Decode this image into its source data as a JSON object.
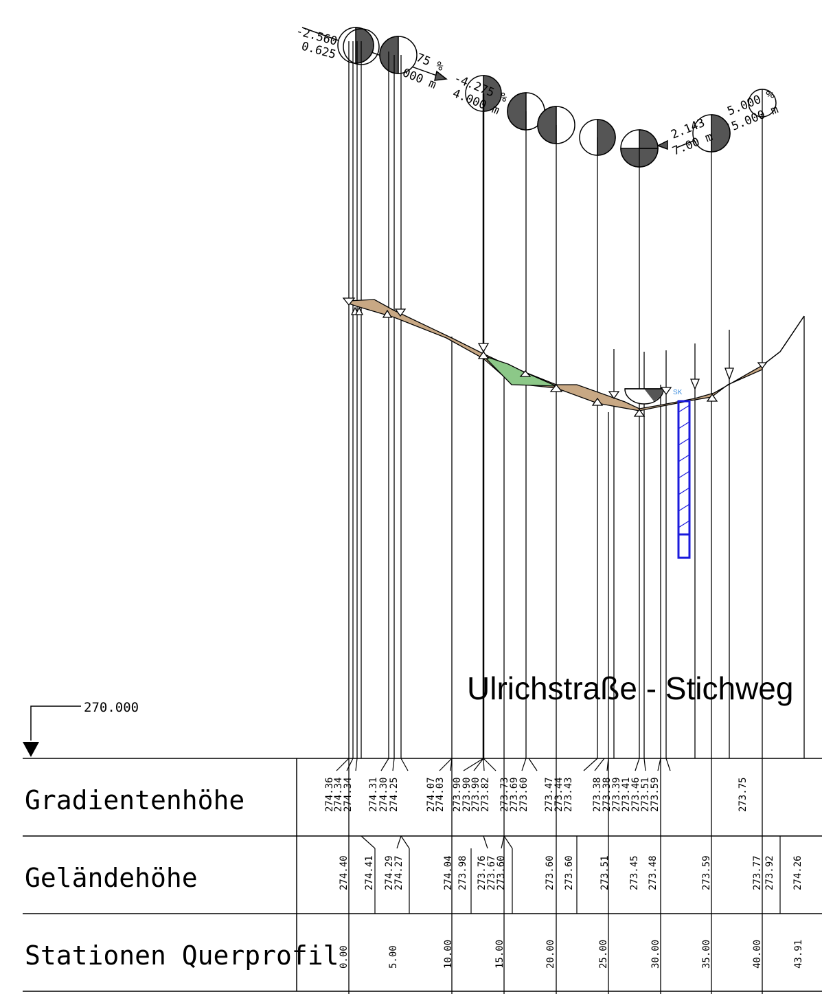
{
  "title": "Ulrichstraße - Stichweg",
  "datum_label": "270.000",
  "rows": [
    {
      "label": "Gradientenhöhe"
    },
    {
      "label": "Geländehöhe"
    },
    {
      "label": "Stationen Querprofil"
    }
  ],
  "gradient_values": [
    "274.36",
    "274.34",
    "274.34",
    "274.31",
    "274.30",
    "274.25",
    "274.07",
    "274.03",
    "273.90",
    "273.90",
    "273.90",
    "273.82",
    "273.73",
    "273.69",
    "273.60",
    "273.47",
    "273.44",
    "273.43",
    "273.38",
    "273.38",
    "273.39",
    "273.41",
    "273.46",
    "273.51",
    "273.59",
    "273.75"
  ],
  "terrain_values": [
    "274.40",
    "274.41",
    "274.29",
    "274.27",
    "274.04",
    "273.98",
    "273.76",
    "273.67",
    "273.60",
    "273.60",
    "273.60",
    "273.51",
    "273.45",
    "273.48",
    "273.59",
    "273.77",
    "273.92",
    "274.26"
  ],
  "station_values": [
    "0.00",
    "5.00",
    "10.00",
    "15.00",
    "20.00",
    "25.00",
    "30.00",
    "35.00",
    "40.00",
    "43.91"
  ],
  "slope_annotations": {
    "top_left_1": "-2.560",
    "top_left_2": "0.625",
    "slope_a": "-4.275 %",
    "length_a": "4.000 m",
    "slope_b": "5.000 %",
    "length_b": "5.000 m",
    "slope_c": "2.143",
    "length_c": "7.00 m",
    "misc_1": "75 %",
    "misc_2": "000 m"
  },
  "shaft_label": "SK",
  "colors": {
    "terrain_fill": "#c8a884",
    "cut_fill": "#8cc888",
    "shaft": "#1a1adc",
    "line": "#000000",
    "dark_half": "#555555"
  }
}
